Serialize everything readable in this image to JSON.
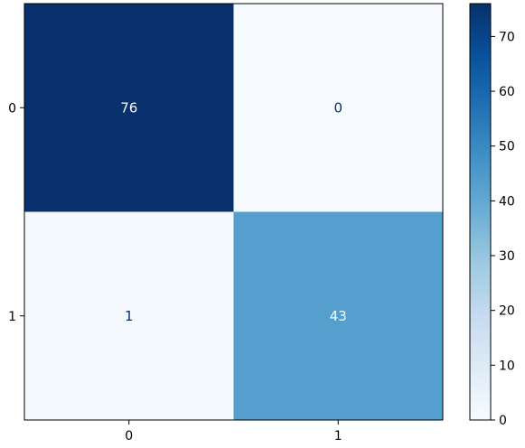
{
  "chart_data": {
    "type": "heatmap",
    "title": "",
    "xlabel": "",
    "ylabel": "",
    "x_tick_labels": [
      "0",
      "1"
    ],
    "y_tick_labels": [
      "0",
      "1"
    ],
    "matrix": [
      [
        76,
        0
      ],
      [
        1,
        43
      ]
    ],
    "cell_labels": [
      [
        "76",
        "0"
      ],
      [
        "1",
        "43"
      ]
    ],
    "colormap": "Blues",
    "colorbar": {
      "range": [
        0,
        76
      ],
      "ticks": [
        0,
        10,
        20,
        30,
        40,
        50,
        60,
        70
      ],
      "tick_labels": [
        "0",
        "10",
        "20",
        "30",
        "40",
        "50",
        "60",
        "70"
      ]
    },
    "colors": {
      "min": "#f7fbff",
      "max": "#08306b",
      "text_dark": "#08306b",
      "text_light": "#f7fbff"
    },
    "grid": false
  }
}
